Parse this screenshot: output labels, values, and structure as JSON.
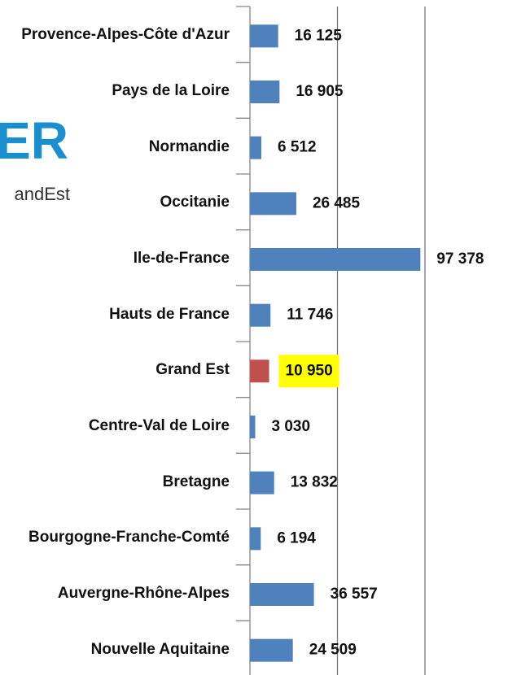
{
  "chart_data": {
    "type": "barh",
    "categories": [
      "Provence-Alpes-Côte d'Azur",
      "Pays de la Loire",
      "Normandie",
      "Occitanie",
      "Ile-de-France",
      "Hauts de France",
      "Grand Est",
      "Centre-Val de Loire",
      "Bretagne",
      "Bourgogne-Franche-Comté",
      "Auvergne-Rhône-Alpes",
      "Nouvelle Aquitaine"
    ],
    "values": [
      16125,
      16905,
      6512,
      26485,
      97378,
      11746,
      10950,
      3030,
      13832,
      6194,
      36557,
      24509
    ],
    "value_labels": [
      "16 125",
      "16 905",
      "6 512",
      "26 485",
      "97 378",
      "11 746",
      "10 950",
      "3 030",
      "13 832",
      "6 194",
      "36 557",
      "24 509"
    ],
    "colors": [
      "#4f81bd",
      "#4f81bd",
      "#4f81bd",
      "#4f81bd",
      "#4f81bd",
      "#4f81bd",
      "#c0504d",
      "#4f81bd",
      "#4f81bd",
      "#4f81bd",
      "#4f81bd",
      "#4f81bd"
    ],
    "label_highlight": {
      "category": "Grand Est",
      "color": "#ffff00"
    },
    "xlim": [
      0,
      100000
    ],
    "xticks": [
      0,
      50000,
      100000
    ],
    "grid": true,
    "logo": {
      "text": "ER",
      "subtext": "andEst"
    }
  }
}
